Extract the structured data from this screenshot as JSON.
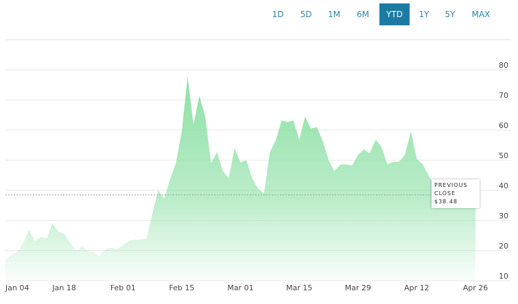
{
  "chart_data": {
    "type": "area",
    "range_buttons": [
      "1D",
      "5D",
      "1M",
      "6M",
      "YTD",
      "1Y",
      "5Y",
      "MAX"
    ],
    "active_range": "YTD",
    "color": "#8ee0a6",
    "grid": true,
    "ylim": [
      10,
      90
    ],
    "yticks": [
      10,
      20,
      30,
      40,
      50,
      60,
      70,
      80
    ],
    "categories": [
      null,
      null,
      "Jan 04",
      null,
      null,
      null,
      null,
      null,
      null,
      null,
      "Jan 18",
      null,
      null,
      null,
      null,
      null,
      null,
      null,
      null,
      null,
      "Feb 01",
      null,
      null,
      null,
      null,
      null,
      null,
      null,
      null,
      null,
      "Feb 15",
      null,
      null,
      null,
      null,
      null,
      null,
      null,
      null,
      null,
      "Mar 01",
      null,
      null,
      null,
      null,
      null,
      null,
      null,
      null,
      null,
      "Mar 15",
      null,
      null,
      null,
      null,
      null,
      null,
      null,
      null,
      null,
      "Mar 29",
      null,
      null,
      null,
      null,
      null,
      null,
      null,
      null,
      null,
      "Apr 12",
      null,
      null,
      null,
      null,
      null,
      null,
      null,
      null,
      null,
      "Apr 26"
    ],
    "values": [
      16.8,
      18.6,
      19.5,
      22.5,
      26.8,
      23.2,
      24.5,
      24,
      29,
      26.4,
      25.5,
      22.7,
      19.8,
      21.4,
      20,
      19.5,
      18.2,
      20.5,
      20.9,
      20.5,
      21.8,
      23.2,
      23.6,
      23.6,
      24,
      32.3,
      40,
      37.3,
      43.6,
      49,
      59.5,
      77.7,
      61.8,
      71.4,
      64.5,
      49,
      52.7,
      46.4,
      44,
      54,
      49.3,
      50,
      44,
      40.5,
      39,
      52.7,
      56.6,
      63.2,
      62.7,
      63.2,
      56.8,
      64.5,
      60.5,
      61,
      56.4,
      50,
      46.4,
      48.6,
      48.6,
      48.2,
      51.8,
      53.6,
      52.3,
      56.8,
      54.5,
      48.6,
      49.5,
      49.5,
      51.8,
      59.5,
      50.5,
      48.6,
      45,
      41.8,
      40.7,
      39.5,
      39,
      39,
      38.4,
      38.4,
      38.4
    ],
    "previous_close": {
      "label": "PREVIOUS CLOSE",
      "value": 38.48,
      "value_label": "$38.48"
    }
  }
}
